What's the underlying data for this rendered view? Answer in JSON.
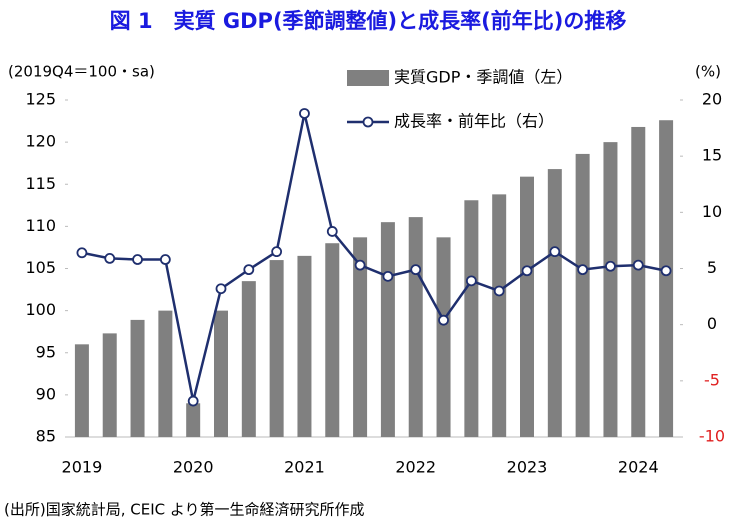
{
  "chart_data": {
    "type": "bar_line",
    "title": "図 1　実質 GDP(季節調整値)と成長率(前年比)の推移",
    "ylabel": "(2019Q4＝100・sa)",
    "y2label": "(%)",
    "source": "(出所)国家統計局, CEIC より第一生命経済研究所作成",
    "categories": [
      "2019",
      null,
      null,
      null,
      "2020",
      null,
      null,
      null,
      "2021",
      null,
      null,
      null,
      "2022",
      null,
      null,
      null,
      "2023",
      null,
      null,
      null,
      "2024",
      null
    ],
    "series": [
      {
        "name": "実質GDP・季調値（左）",
        "color": "#808080",
        "kind": "bar",
        "values": [
          96,
          97.3,
          98.9,
          100,
          89,
          100,
          103.5,
          106,
          106.5,
          108,
          108.7,
          110.5,
          111.1,
          108.7,
          113.1,
          113.8,
          115.9,
          116.8,
          118.6,
          120,
          121.8,
          122.6
        ]
      },
      {
        "name": "成長率・前年比（右）",
        "color": "#1f2f6e",
        "kind": "line",
        "axis": "y2",
        "values": [
          6.4,
          5.9,
          5.8,
          5.8,
          -6.8,
          3.2,
          4.9,
          6.5,
          18.8,
          8.3,
          5.3,
          4.3,
          4.9,
          0.4,
          3.9,
          3.0,
          4.8,
          6.5,
          4.9,
          5.2,
          5.3,
          4.8
        ]
      }
    ],
    "ylim": [
      85,
      125
    ],
    "yticks": [
      85,
      90,
      95,
      100,
      105,
      110,
      115,
      120,
      125
    ],
    "y2lim": [
      -10,
      20
    ],
    "y2ticks": [
      -10,
      -5,
      0,
      5,
      10,
      15,
      20
    ],
    "y2_negative_color": "#e02020",
    "title_color": "#1a1adf"
  }
}
